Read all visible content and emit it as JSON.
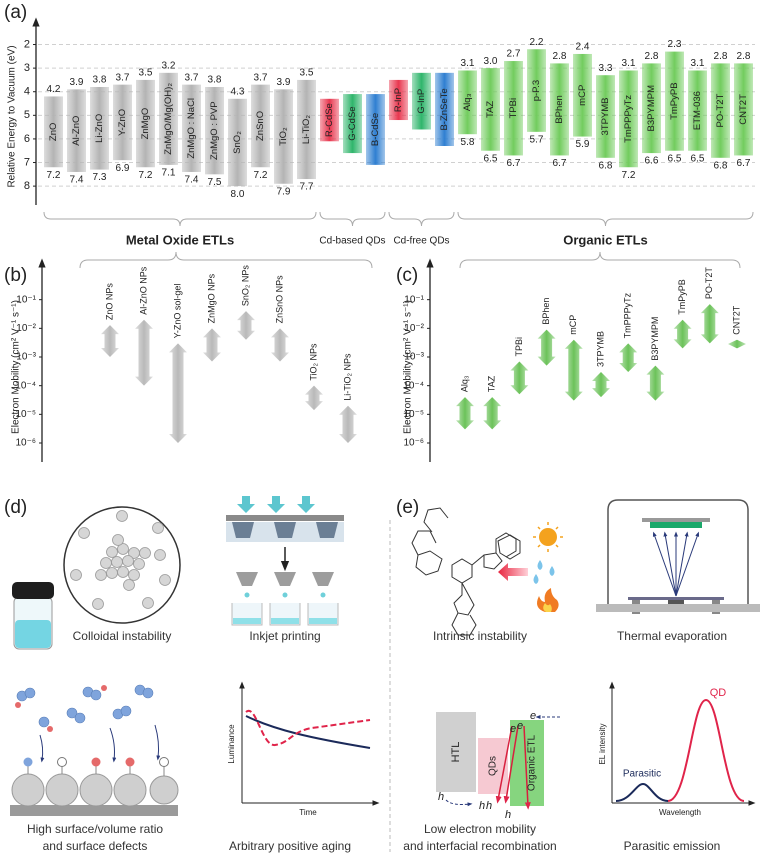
{
  "panel_labels": [
    "(a)",
    "(b)",
    "(c)",
    "(d)",
    "(e)"
  ],
  "chart_data": [
    {
      "type": "floating-bar",
      "y_label": "Relative Energy to Vacuum (eV)",
      "ylim": [
        1.3,
        8.8
      ],
      "y_inverted": true,
      "yticks": [
        2,
        3,
        4,
        5,
        6,
        7,
        8
      ],
      "grid": true,
      "groups": [
        {
          "name": "Metal Oxide ETLs",
          "emphasis": true,
          "color": "#b4b4b4",
          "categories": [
            "ZnO",
            "Al-ZnO",
            "Li-ZnO",
            "Y-ZnO",
            "ZnMgO",
            "ZnMgO/Mg(OH)₂",
            "ZnMgO : NaCl",
            "ZnMgO : PVP",
            "SnO₂",
            "ZnSnO",
            "TiO₂",
            "Li-TiO₂"
          ],
          "lumo": [
            4.2,
            3.9,
            3.8,
            3.7,
            3.5,
            3.2,
            3.7,
            3.8,
            4.3,
            3.7,
            3.9,
            3.5
          ],
          "homo": [
            7.2,
            7.4,
            7.3,
            6.9,
            7.2,
            7.1,
            7.4,
            7.5,
            8.0,
            7.2,
            7.9,
            7.7
          ],
          "lumo_value_labels": [
            "4.2",
            "3.9",
            "3.8",
            "3.7",
            "3.5",
            "3.2",
            "3.7",
            "3.8",
            "4.3",
            "3.7",
            "3.9",
            "3.5"
          ],
          "homo_value_labels": [
            "7.2",
            "7.4",
            "7.3",
            "6.9",
            "7.2",
            "7.1",
            "7.4",
            "7.5",
            "8.0",
            "7.2",
            "7.9",
            "7.7"
          ]
        },
        {
          "name": "Cd-based QDs",
          "emphasis": false,
          "colors": [
            "#e8374f",
            "#2fb56b",
            "#2f7fd1"
          ],
          "categories": [
            "R-CdSe",
            "G-CdSe",
            "B-CdSe"
          ],
          "lumo": [
            4.3,
            4.1,
            4.1
          ],
          "homo": [
            6.1,
            6.6,
            7.1
          ]
        },
        {
          "name": "Cd-free QDs",
          "emphasis": false,
          "colors": [
            "#e8374f",
            "#2fb56b",
            "#2f7fd1"
          ],
          "categories": [
            "R-InP",
            "G-InP",
            "B-ZnSeTe"
          ],
          "lumo": [
            3.5,
            3.2,
            3.2
          ],
          "homo": [
            5.2,
            5.6,
            6.3
          ]
        },
        {
          "name": "Organic ETLs",
          "emphasis": true,
          "color": "#72cc5e",
          "categories": [
            "Alq₃",
            "TAZ",
            "TPBi",
            "p-P.3",
            "BPhen",
            "mCP",
            "3TPYMB",
            "TmPPPyTz",
            "B3PYMPM",
            "TmPyPB",
            "ETM-036",
            "PO-T2T",
            "CNT2T"
          ],
          "lumo": [
            3.1,
            3.0,
            2.7,
            2.2,
            2.8,
            2.4,
            3.3,
            3.1,
            2.8,
            2.3,
            3.1,
            2.8,
            2.8
          ],
          "homo": [
            5.8,
            6.5,
            6.7,
            5.7,
            6.7,
            5.9,
            6.8,
            7.2,
            6.6,
            6.5,
            6.5,
            6.8,
            6.7
          ],
          "lumo_value_labels": [
            "3.1",
            "3.0",
            "2.7",
            "2.2",
            "2.8",
            "2.4",
            "3.3",
            "3.1",
            "2.8",
            "2.3",
            "3.1",
            "2.8",
            "2.8"
          ],
          "homo_value_labels": [
            "5.8",
            "6.5",
            "6.7",
            "5.7",
            "6.7",
            "5.9",
            "6.8",
            "7.2",
            "6.6",
            "6.5",
            "6.5",
            "6.8",
            "6.7"
          ]
        }
      ]
    },
    {
      "type": "range-arrow",
      "y_label": "Electron Mobility (cm² V⁻¹ s⁻¹)",
      "log_scale": true,
      "ylim": [
        3e-07,
        1
      ],
      "color": "#b9b9b9",
      "yticks": [
        {
          "value": 1e-06,
          "label": "10⁻⁶"
        },
        {
          "value": 1e-05,
          "label": "10⁻⁵"
        },
        {
          "value": 0.0001,
          "label": "10⁻⁴"
        },
        {
          "value": 0.001,
          "label": "10⁻³"
        },
        {
          "value": 0.01,
          "label": "10⁻²"
        },
        {
          "value": 0.1,
          "label": "10⁻¹"
        }
      ],
      "categories": [
        "ZnO NPs",
        "Al-ZnO NPs",
        "Y-ZnO sol-gel",
        "ZnMgO NPs",
        "SnO₂ NPs",
        "ZnSnO NPs",
        "TiO₂ NPs",
        "Li-TiO₂ NPs"
      ],
      "low": [
        0.001,
        0.0001,
        1e-06,
        0.0007,
        0.004,
        0.0007,
        1.4e-05,
        1e-06
      ],
      "high": [
        0.013,
        0.02,
        0.003,
        0.01,
        0.04,
        0.01,
        0.0001,
        2e-05
      ]
    },
    {
      "type": "range-arrow",
      "y_label": "Electron Mobility (cm² V⁻¹ s⁻¹)",
      "log_scale": true,
      "ylim": [
        3e-07,
        1
      ],
      "color": "#6cc25a",
      "yticks": [
        {
          "value": 1e-06,
          "label": "10⁻⁶"
        },
        {
          "value": 1e-05,
          "label": "10⁻⁵"
        },
        {
          "value": 0.0001,
          "label": "10⁻⁴"
        },
        {
          "value": 0.001,
          "label": "10⁻³"
        },
        {
          "value": 0.01,
          "label": "10⁻²"
        },
        {
          "value": 0.1,
          "label": "10⁻¹"
        }
      ],
      "categories": [
        "Alq₃",
        "TAZ",
        "TPBi",
        "BPhen",
        "mCP",
        "3TPYMB",
        "TmPPPyTz",
        "B3PYMPM",
        "TmPyPB",
        "PO-T2T",
        "CNT2T"
      ],
      "low": [
        3e-06,
        3e-06,
        5e-05,
        0.0005,
        3e-05,
        4e-05,
        0.0003,
        3e-05,
        0.002,
        0.003,
        0.002
      ],
      "high": [
        4e-05,
        4e-05,
        0.0007,
        0.009,
        0.004,
        0.0003,
        0.003,
        0.0005,
        0.02,
        0.07,
        0.004
      ]
    }
  ],
  "illustrations": {
    "d": {
      "captions": [
        "Colloidal instability",
        "Inkjet printing",
        "High surface/volume ratio",
        "and surface defects",
        "Arbitrary positive aging"
      ],
      "aging_plot": {
        "y_label": "Luminance",
        "x_label": "Time"
      }
    },
    "e": {
      "captions": [
        "Intrinsic instability",
        "Thermal evaporation",
        "Low electron mobility",
        "and interfacial recombination",
        "Parasitic emission"
      ],
      "band_diagram": {
        "layers": [
          "HTL",
          "QDs",
          "Organic ETL"
        ],
        "electron": "e",
        "hole": "h"
      },
      "spectrum": {
        "y_label": "EL intensity",
        "x_label": "Wavelength",
        "peaks": [
          "Parasitic",
          "QD"
        ]
      }
    }
  }
}
